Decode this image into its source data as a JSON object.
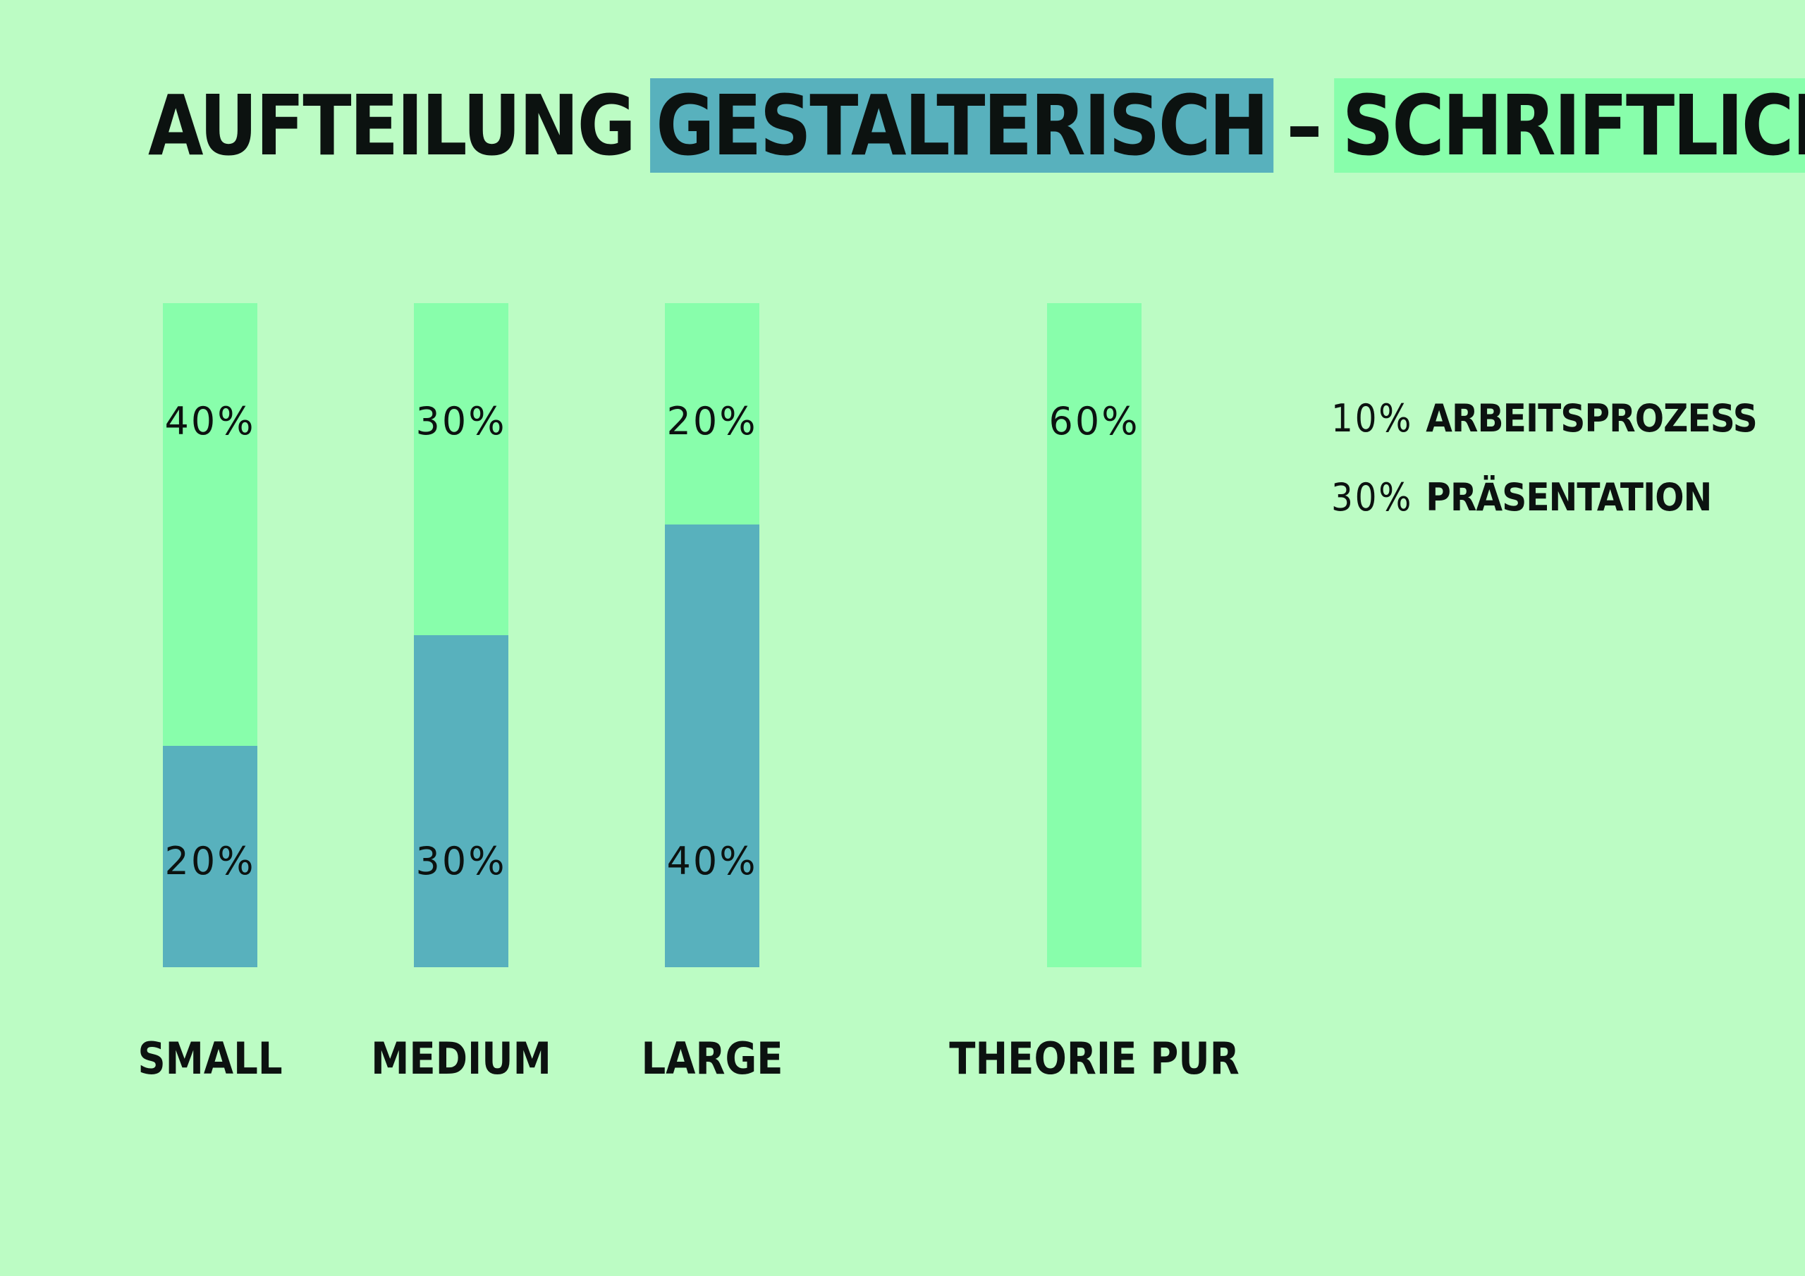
{
  "title": {
    "prefix": "AUFTEILUNG",
    "highlight_a": "GESTALTERISCH",
    "separator": "–",
    "highlight_b": "SCHRIFTLICH"
  },
  "colors": {
    "background": "#bcfcc4",
    "gestalterisch": "#58b1bd",
    "schriftlich": "#88feab",
    "text": "#0c1210"
  },
  "chart_data": {
    "type": "bar",
    "stacked": true,
    "categories": [
      "SMALL",
      "MEDIUM",
      "LARGE",
      "THEORIE PUR"
    ],
    "series": [
      {
        "name": "GESTALTERISCH",
        "color": "#58b1bd",
        "values": [
          20,
          30,
          40,
          0
        ],
        "labels": [
          "20%",
          "30%",
          "40%",
          ""
        ]
      },
      {
        "name": "SCHRIFTLICH",
        "color": "#88feab",
        "values": [
          40,
          30,
          20,
          60
        ],
        "labels": [
          "40%",
          "30%",
          "20%",
          "60%"
        ]
      }
    ],
    "ylim": [
      0,
      60
    ],
    "grid": false,
    "legend": "title",
    "xlabel": "",
    "ylabel": ""
  },
  "notes": [
    {
      "pct": "10%",
      "text": "ARBEITSPROZESS"
    },
    {
      "pct": "30%",
      "text": "PRÄSENTATION"
    }
  ]
}
